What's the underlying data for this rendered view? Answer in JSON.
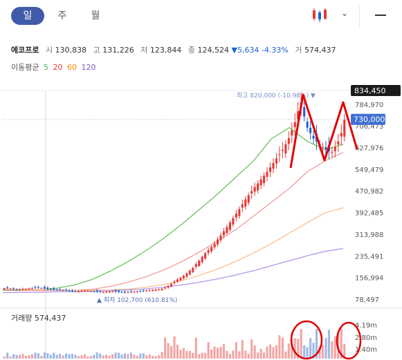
{
  "tabs": [
    {
      "label": "일",
      "active": true
    },
    {
      "label": "주",
      "active": false
    },
    {
      "label": "월",
      "active": false
    }
  ],
  "info": {
    "name": "에코프로",
    "open_label": "시",
    "open": "130,838",
    "high_label": "고",
    "high": "131,226",
    "low_label": "저",
    "low": "123,844",
    "close_label": "종",
    "close": "124,524",
    "change": "▼5,634",
    "change_pct": "-4.33%",
    "volume_label": "거",
    "volume": "574,437"
  },
  "moving_avg": {
    "label": "이동평균",
    "items": [
      {
        "period": "5",
        "color": "#4caf50"
      },
      {
        "period": "20",
        "color": "#e53935"
      },
      {
        "period": "60",
        "color": "#fb8c00"
      },
      {
        "period": "120",
        "color": "#7e57c2"
      }
    ]
  },
  "volume_panel": {
    "label": "거래량",
    "value": "574,437",
    "ticks": [
      "4.19m",
      "2.80m",
      "1.40m"
    ]
  },
  "colors": {
    "up": "#e53935",
    "down": "#1e63d1",
    "annotation": "#e00000",
    "accent": "#3f5ba9"
  },
  "chart_data": {
    "type": "candlestick",
    "y_ticks": [
      834450,
      784970,
      706473,
      627976,
      549479,
      470982,
      392485,
      313988,
      235491,
      156994,
      78497
    ],
    "y_tick_labels": [
      "834,450",
      "784,970",
      "706,473",
      "627,976",
      "549,479",
      "470,982",
      "392,485",
      "313,988",
      "235,491",
      "156,994",
      "78,497"
    ],
    "ylim": [
      78497,
      834450
    ],
    "current_price": {
      "value": 730000,
      "label": "730,000"
    },
    "max_label": "최고 820,000 (-10.98%)",
    "max_value": 820000,
    "min_label": "최저 102,700 (610.81%)",
    "min_value": 102700,
    "close_series": [
      118000,
      119000,
      117000,
      115000,
      113000,
      114000,
      116000,
      115000,
      117000,
      119000,
      120000,
      121000,
      119000,
      118000,
      116000,
      115000,
      114000,
      113000,
      112000,
      111000,
      110000,
      109000,
      108000,
      107000,
      108000,
      109000,
      110000,
      109000,
      108000,
      107000,
      106000,
      105000,
      104000,
      105000,
      106000,
      107000,
      106000,
      105000,
      104000,
      103000,
      104000,
      105000,
      106000,
      107000,
      108000,
      109000,
      110000,
      111000,
      112000,
      113000,
      114000,
      116000,
      120000,
      126000,
      134000,
      142000,
      150000,
      156000,
      163000,
      172000,
      182000,
      192000,
      205000,
      218000,
      232000,
      245000,
      256000,
      268000,
      280000,
      295000,
      310000,
      325000,
      340000,
      356000,
      372000,
      388000,
      405000,
      422000,
      440000,
      455000,
      470000,
      485000,
      498000,
      512000,
      526000,
      540000,
      556000,
      572000,
      588000,
      604000,
      620000,
      640000,
      662000,
      690000,
      720000,
      760000,
      790000,
      740000,
      700000,
      680000,
      660000,
      650000,
      640000,
      630000,
      622000,
      615000,
      612000,
      630000,
      650000,
      680000,
      730000
    ],
    "moving_averages": {
      "ma5": [
        110000,
        110000,
        112000,
        118000,
        130000,
        150000,
        180000,
        215000,
        255000,
        300000,
        350000,
        405000,
        460000,
        520000,
        580000,
        660000,
        700000,
        650000,
        620000,
        640000
      ],
      "ma20": [
        112000,
        111000,
        110000,
        110000,
        111000,
        114000,
        125000,
        140000,
        160000,
        185000,
        215000,
        250000,
        290000,
        330000,
        380000,
        430000,
        480000,
        540000,
        580000,
        610000
      ],
      "ma60": [
        115000,
        114000,
        113000,
        112000,
        111000,
        111000,
        112000,
        115000,
        122000,
        132000,
        146000,
        165000,
        188000,
        215000,
        246000,
        280000,
        318000,
        356000,
        392000,
        410000
      ],
      "ma120": [
        102000,
        103000,
        104000,
        105000,
        106000,
        107000,
        109000,
        112000,
        116000,
        122000,
        130000,
        140000,
        152000,
        166000,
        182000,
        200000,
        218000,
        236000,
        252000,
        262000
      ]
    }
  }
}
